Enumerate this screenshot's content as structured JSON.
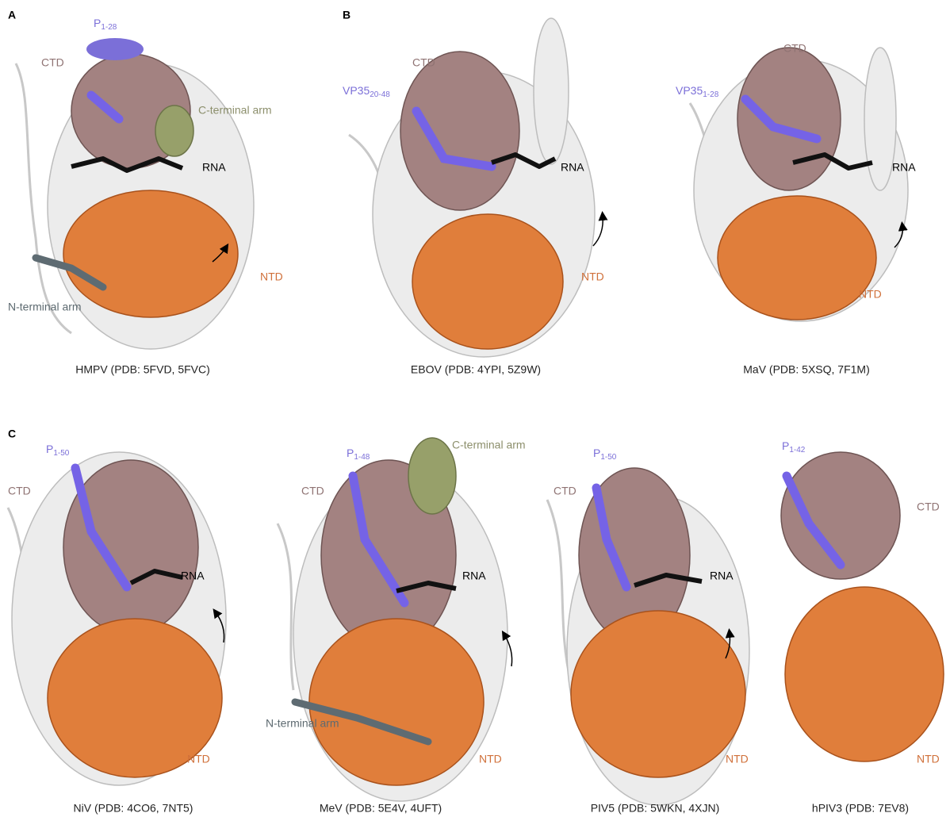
{
  "panels": [
    {
      "label": "A",
      "structures": [
        {
          "p_label": {
            "base": "P",
            "sub": "1-28"
          },
          "ctd": "CTD",
          "c_terminal_arm": "C-terminal arm",
          "rna": "RNA",
          "ntd": "NTD",
          "n_terminal_arm": "N-terminal arm",
          "caption": "HMPV (PDB: 5FVD, 5FVC)"
        }
      ]
    },
    {
      "label": "B",
      "structures": [
        {
          "ctd": "CTD",
          "p_label": {
            "base": "VP35",
            "sub": "20-48"
          },
          "rna": "RNA",
          "ntd": "NTD",
          "caption": "EBOV (PDB: 4YPI, 5Z9W)"
        },
        {
          "ctd": "CTD",
          "p_label": {
            "base": "VP35",
            "sub": "1-28"
          },
          "rna": "RNA",
          "ntd": "NTD",
          "caption": "MaV (PDB: 5XSQ, 7F1M)"
        }
      ]
    },
    {
      "label": "C",
      "structures": [
        {
          "p_label": {
            "base": "P",
            "sub": "1-50"
          },
          "ctd": "CTD",
          "rna": "RNA",
          "ntd": "NTD",
          "caption": "NiV (PDB: 4CO6, 7NT5)"
        },
        {
          "p_label": {
            "base": "P",
            "sub": "1-48"
          },
          "c_terminal_arm": "C-terminal arm",
          "ctd": "CTD",
          "rna": "RNA",
          "n_terminal_arm": "N-terminal arm",
          "ntd": "NTD",
          "caption": "MeV (PDB: 5E4V, 4UFT)"
        },
        {
          "p_label": {
            "base": "P",
            "sub": "1-50"
          },
          "ctd": "CTD",
          "rna": "RNA",
          "ntd": "NTD",
          "caption": "PIV5 (PDB: 5WKN, 4XJN)"
        },
        {
          "p_label": {
            "base": "P",
            "sub": "1-42"
          },
          "ctd": "CTD",
          "ntd": "NTD",
          "caption": "hPIV3 (PDB: 7EV8)"
        }
      ]
    }
  ]
}
